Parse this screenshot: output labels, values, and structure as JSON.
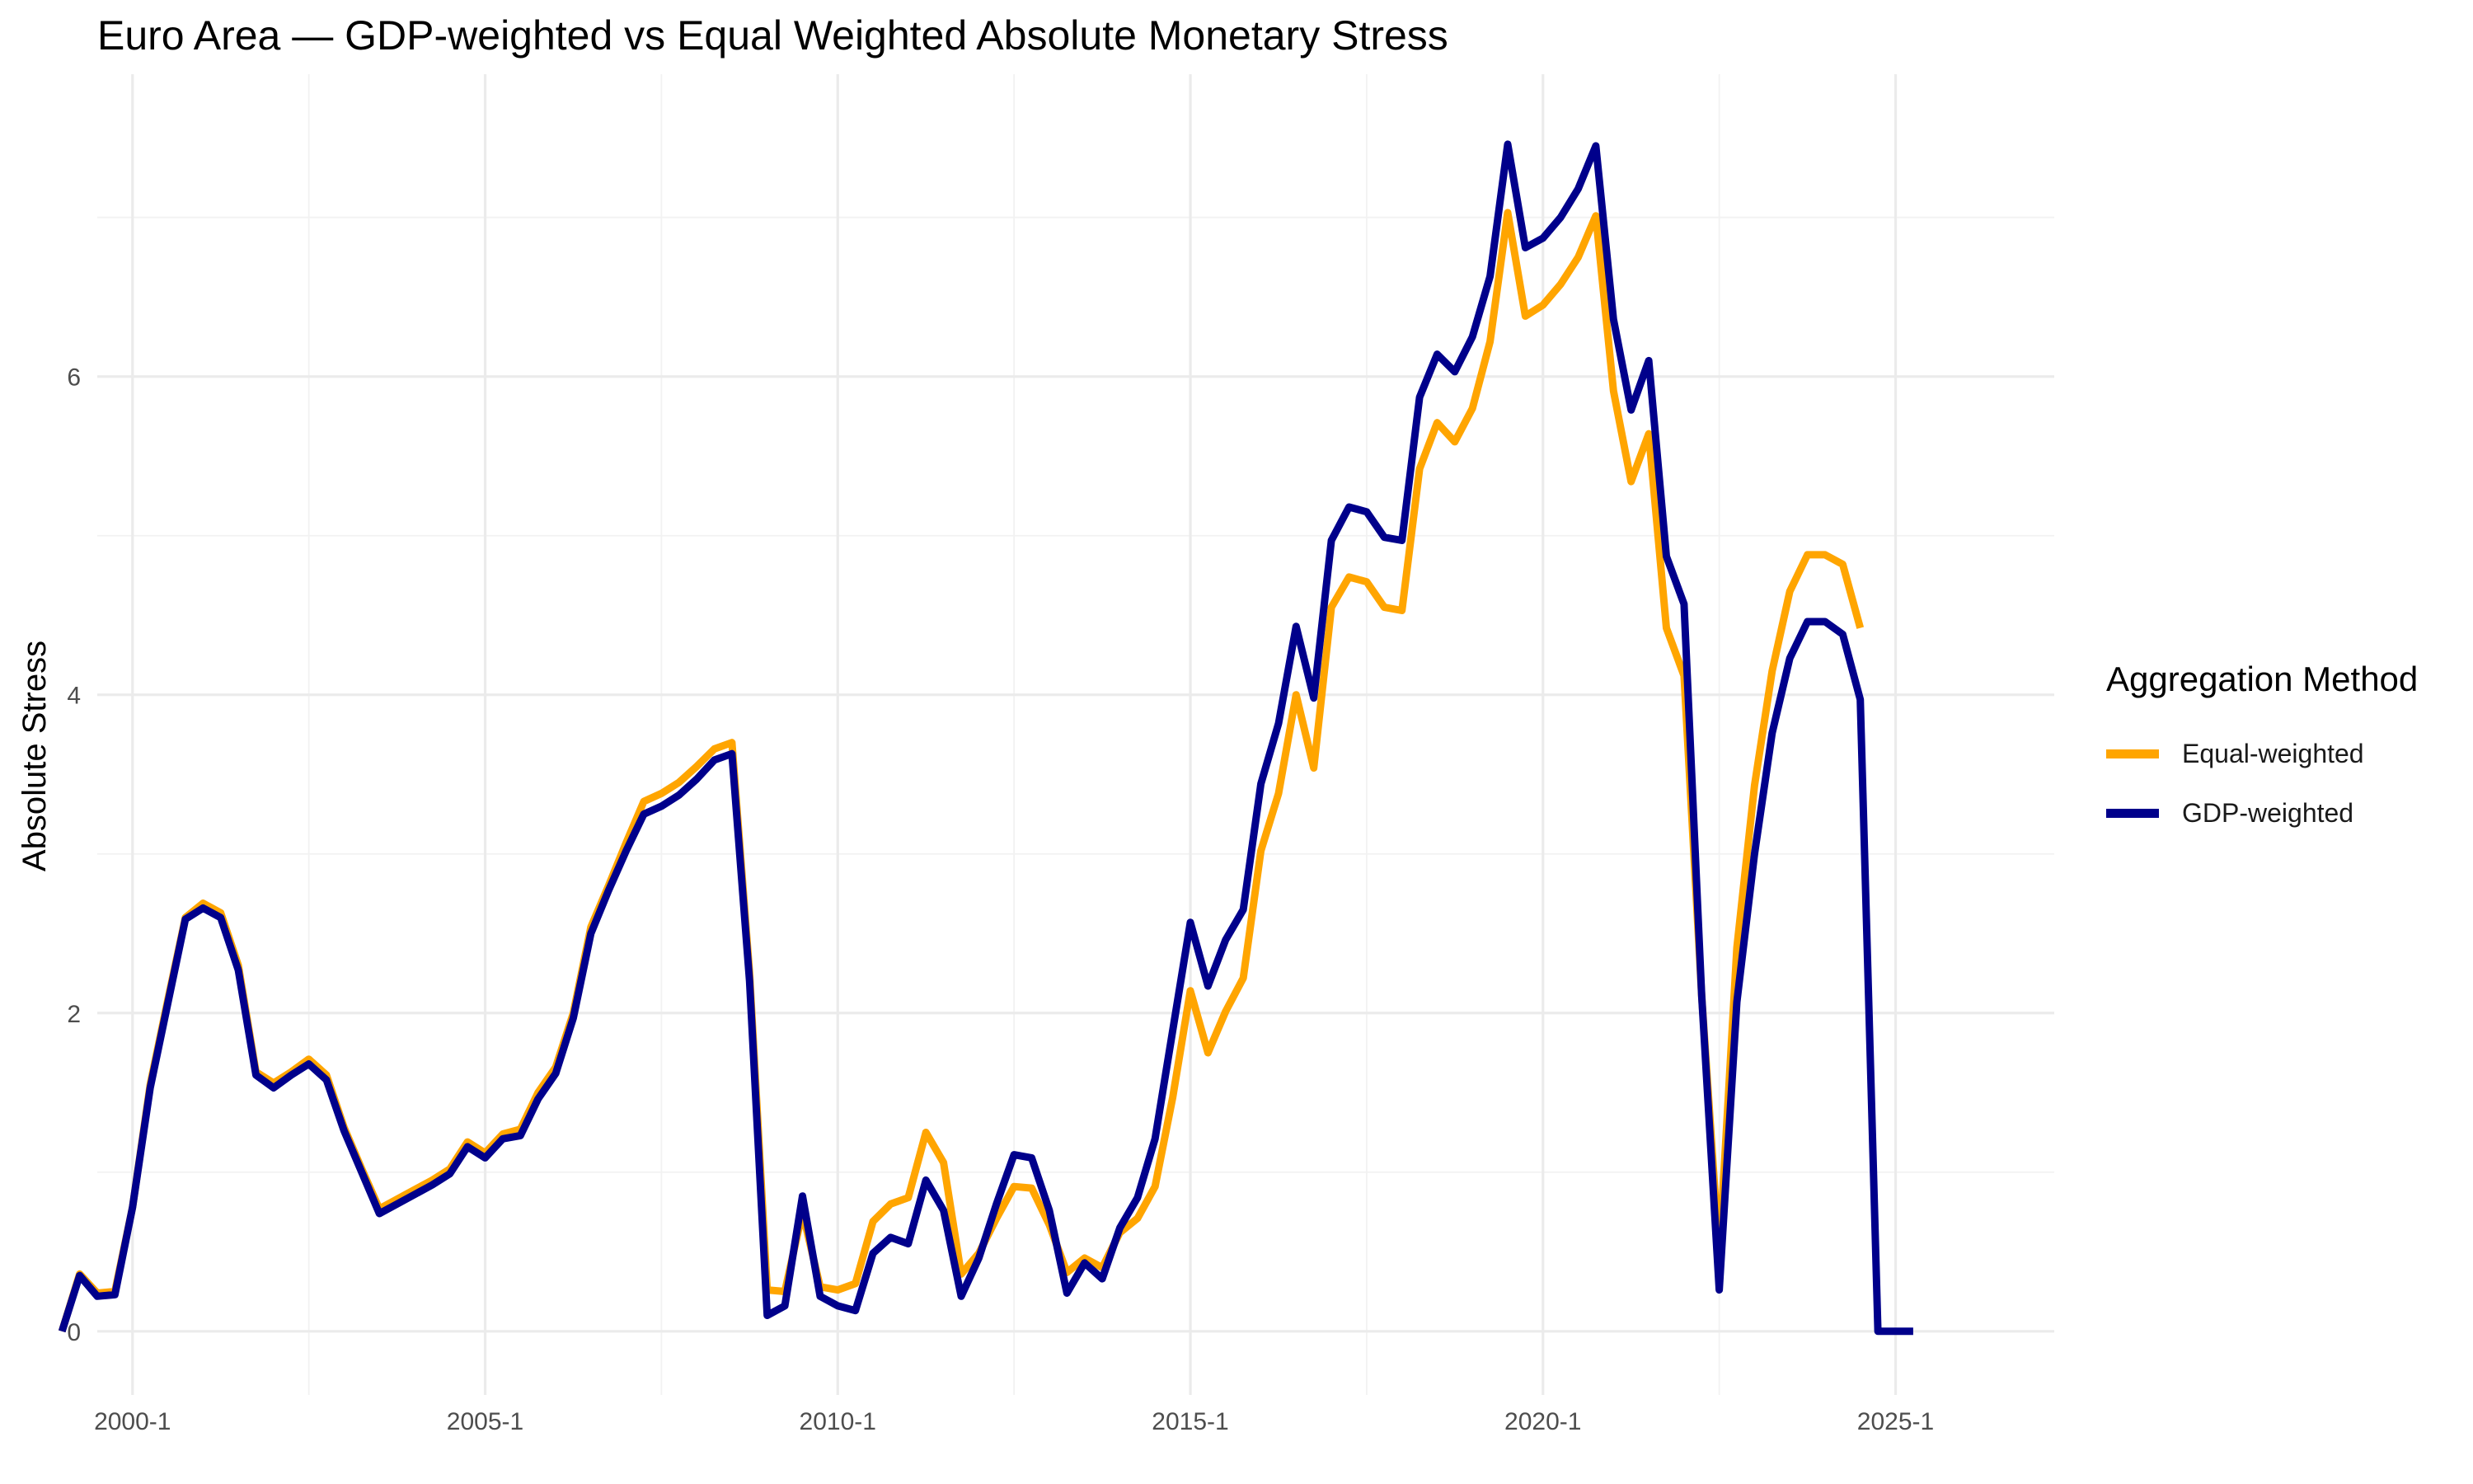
{
  "chart_data": {
    "type": "line",
    "title": "Euro Area — GDP-weighted vs Equal Weighted Absolute Monetary Stress",
    "xlabel": "",
    "ylabel": "Absolute Stress",
    "xlim": [
      "1998-7",
      "2025-10"
    ],
    "ylim": [
      -0.4,
      7.9
    ],
    "x_ticks": [
      "2000-1",
      "2005-1",
      "2010-1",
      "2015-1",
      "2020-1",
      "2025-1"
    ],
    "y_ticks": [
      0,
      2,
      4,
      6
    ],
    "grid": true,
    "legend": {
      "title": "Aggregation Method",
      "position": "right"
    },
    "x": [
      "1999-1",
      "1999-2",
      "1999-3",
      "1999-4",
      "2000-1",
      "2000-2",
      "2000-3",
      "2000-4",
      "2001-1",
      "2001-2",
      "2001-3",
      "2001-4",
      "2002-1",
      "2002-2",
      "2002-3",
      "2002-4",
      "2003-1",
      "2003-2",
      "2003-3",
      "2003-4",
      "2004-1",
      "2004-2",
      "2004-3",
      "2004-4",
      "2005-1",
      "2005-2",
      "2005-3",
      "2005-4",
      "2006-1",
      "2006-2",
      "2006-3",
      "2006-4",
      "2007-1",
      "2007-2",
      "2007-3",
      "2007-4",
      "2008-1",
      "2008-2",
      "2008-3",
      "2008-4",
      "2009-1",
      "2009-2",
      "2009-3",
      "2009-4",
      "2010-1",
      "2010-2",
      "2010-3",
      "2010-4",
      "2011-1",
      "2011-2",
      "2011-3",
      "2011-4",
      "2012-1",
      "2012-2",
      "2012-3",
      "2012-4",
      "2013-1",
      "2013-2",
      "2013-3",
      "2013-4",
      "2014-1",
      "2014-2",
      "2014-3",
      "2014-4",
      "2015-1",
      "2015-2",
      "2015-3",
      "2015-4",
      "2016-1",
      "2016-2",
      "2016-3",
      "2016-4",
      "2017-1",
      "2017-2",
      "2017-3",
      "2017-4",
      "2018-1",
      "2018-2",
      "2018-3",
      "2018-4",
      "2019-1",
      "2019-2",
      "2019-3",
      "2019-4",
      "2020-1",
      "2020-2",
      "2020-3",
      "2020-4",
      "2021-1",
      "2021-2",
      "2021-3",
      "2021-4",
      "2022-1",
      "2022-2",
      "2022-3",
      "2022-4",
      "2023-1",
      "2023-2",
      "2023-3",
      "2023-4",
      "2024-1",
      "2024-2",
      "2024-3",
      "2024-4",
      "2025-1",
      "2025-2"
    ],
    "series": [
      {
        "name": "Equal-weighted",
        "color": "#FFA500",
        "values": [
          0.0,
          0.36,
          0.24,
          0.25,
          0.78,
          1.55,
          2.08,
          2.6,
          2.69,
          2.63,
          2.3,
          1.63,
          1.56,
          1.63,
          1.71,
          1.61,
          1.28,
          1.02,
          0.77,
          0.83,
          0.89,
          0.95,
          1.02,
          1.19,
          1.12,
          1.24,
          1.27,
          1.5,
          1.66,
          2.0,
          2.54,
          2.8,
          3.07,
          3.33,
          3.38,
          3.45,
          3.55,
          3.66,
          3.7,
          2.25,
          0.26,
          0.25,
          0.75,
          0.28,
          0.26,
          0.3,
          0.69,
          0.8,
          0.84,
          1.25,
          1.06,
          0.36,
          0.49,
          0.71,
          0.91,
          0.9,
          0.67,
          0.37,
          0.46,
          0.4,
          0.62,
          0.71,
          0.91,
          1.47,
          2.14,
          1.75,
          2.01,
          2.22,
          3.02,
          3.38,
          4.0,
          3.54,
          4.55,
          4.74,
          4.71,
          4.55,
          4.53,
          5.42,
          5.71,
          5.59,
          5.8,
          6.22,
          7.03,
          6.38,
          6.45,
          6.58,
          6.75,
          7.01,
          5.91,
          5.34,
          5.64,
          4.42,
          4.12,
          2.11,
          0.48,
          2.41,
          3.43,
          4.15,
          4.65,
          4.88,
          4.88,
          4.82,
          4.42,
          null,
          null,
          null
        ]
      },
      {
        "name": "GDP-weighted",
        "color": "#00008B",
        "values": [
          0.0,
          0.35,
          0.22,
          0.23,
          0.78,
          1.53,
          2.06,
          2.59,
          2.66,
          2.6,
          2.27,
          1.61,
          1.53,
          1.61,
          1.68,
          1.58,
          1.26,
          1.0,
          0.74,
          0.8,
          0.86,
          0.92,
          0.99,
          1.16,
          1.09,
          1.21,
          1.23,
          1.46,
          1.62,
          1.97,
          2.5,
          2.77,
          3.02,
          3.25,
          3.3,
          3.37,
          3.47,
          3.59,
          3.63,
          2.2,
          0.1,
          0.16,
          0.85,
          0.22,
          0.16,
          0.13,
          0.49,
          0.59,
          0.55,
          0.95,
          0.76,
          0.22,
          0.46,
          0.8,
          1.11,
          1.09,
          0.76,
          0.24,
          0.43,
          0.33,
          0.65,
          0.84,
          1.21,
          1.89,
          2.57,
          2.17,
          2.46,
          2.65,
          3.44,
          3.82,
          4.43,
          3.98,
          4.97,
          5.18,
          5.15,
          4.99,
          4.97,
          5.87,
          6.14,
          6.03,
          6.25,
          6.63,
          7.46,
          6.81,
          6.87,
          7.0,
          7.18,
          7.45,
          6.36,
          5.79,
          6.1,
          4.87,
          4.57,
          2.11,
          0.26,
          2.07,
          3.0,
          3.76,
          4.23,
          4.46,
          4.46,
          4.38,
          3.97,
          0.0,
          0.0,
          0.0
        ]
      }
    ]
  }
}
